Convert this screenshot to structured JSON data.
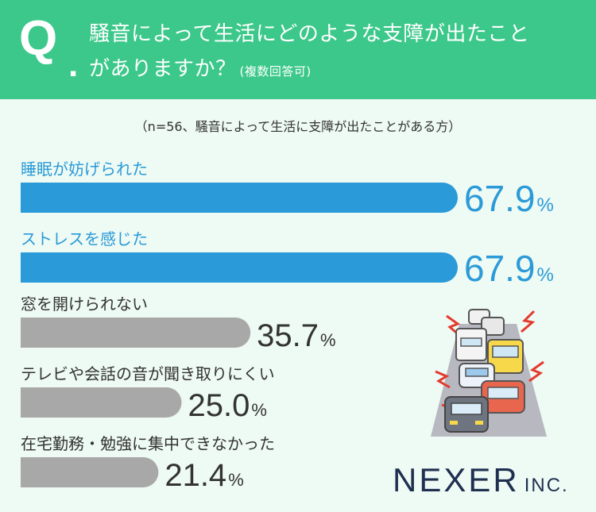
{
  "question": {
    "mark": "Q",
    "dot": ".",
    "line1": "騒音によって生活にどのような支障が出たこと",
    "line2": "がありますか？",
    "note": "(複数回答可)"
  },
  "sample_note": "（n=56、騒音によって生活に支障が出たことがある方）",
  "logo": {
    "main": "NEXER",
    "sub": "INC."
  },
  "colors": {
    "header": "#3cc88a",
    "highlight": "#2a9ad8",
    "normal": "#a8a8a8",
    "value_dark": "#333333",
    "background": "#eefaf4"
  },
  "chart_data": {
    "type": "bar",
    "orientation": "horizontal",
    "unit": "%",
    "xlim": [
      0,
      100
    ],
    "categories": [
      "睡眠が妨げられた",
      "ストレスを感じた",
      "窓を開けられない",
      "テレビや会話の音が聞き取りにくい",
      "在宅勤務・勉強に集中できなかった"
    ],
    "values": [
      67.9,
      67.9,
      35.7,
      25.0,
      21.4
    ],
    "value_labels": [
      "67.9",
      "67.9",
      "35.7",
      "25.0",
      "21.4"
    ],
    "highlighted": [
      true,
      true,
      false,
      false,
      false
    ]
  },
  "illustration": "traffic-jam-icon"
}
